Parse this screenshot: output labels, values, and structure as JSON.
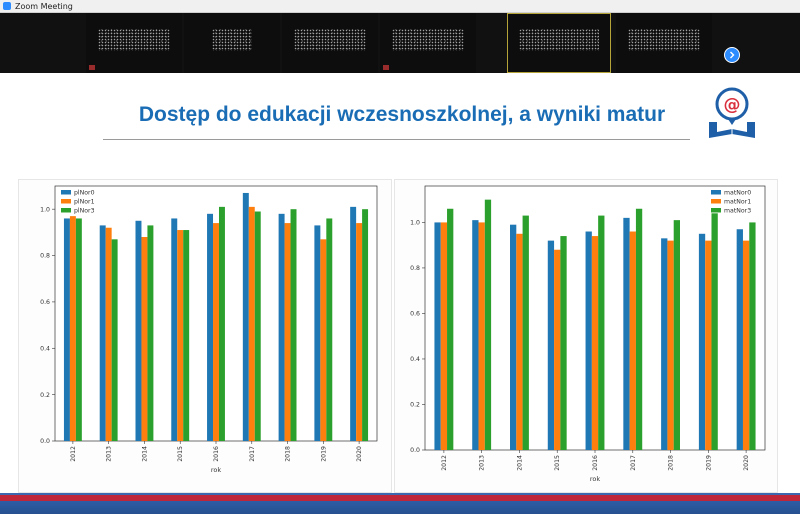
{
  "window": {
    "title": "Zoom Meeting"
  },
  "slide": {
    "title": "Dostęp do edukacji wczesnoszkolnej, a wyniki matur"
  },
  "colors": {
    "series": [
      "#1f77b4",
      "#ff7f0e",
      "#2ca02c"
    ],
    "title": "#1a6db5",
    "accent": "#2d8cff"
  },
  "chart_data": [
    {
      "type": "bar",
      "categories": [
        "2012",
        "2013",
        "2014",
        "2015",
        "2016",
        "2017",
        "2018",
        "2019",
        "2020"
      ],
      "xlabel": "rok",
      "ylabel": "",
      "ylim": [
        0,
        1.1
      ],
      "yticks": [
        "0.0",
        "0.2",
        "0.4",
        "0.6",
        "0.8",
        "1.0"
      ],
      "legend": "top-left",
      "series": [
        {
          "name": "plNor0",
          "values": [
            0.96,
            0.93,
            0.95,
            0.96,
            0.98,
            1.07,
            0.98,
            0.93,
            1.01
          ]
        },
        {
          "name": "plNor1",
          "values": [
            0.97,
            0.92,
            0.88,
            0.91,
            0.94,
            1.01,
            0.94,
            0.87,
            0.94
          ]
        },
        {
          "name": "plNor3",
          "values": [
            0.96,
            0.87,
            0.93,
            0.91,
            1.01,
            0.99,
            1.0,
            0.96,
            1.0
          ]
        }
      ]
    },
    {
      "type": "bar",
      "categories": [
        "2012",
        "2013",
        "2014",
        "2015",
        "2016",
        "2017",
        "2018",
        "2019",
        "2020"
      ],
      "xlabel": "rok",
      "ylabel": "",
      "ylim": [
        0,
        1.16
      ],
      "yticks": [
        "0.0",
        "0.2",
        "0.4",
        "0.6",
        "0.8",
        "1.0"
      ],
      "legend": "top-right",
      "series": [
        {
          "name": "matNor0",
          "values": [
            1.0,
            1.01,
            0.99,
            0.92,
            0.96,
            1.02,
            0.93,
            0.95,
            0.97
          ]
        },
        {
          "name": "matNor1",
          "values": [
            1.0,
            1.0,
            0.95,
            0.88,
            0.94,
            0.96,
            0.92,
            0.92,
            0.92
          ]
        },
        {
          "name": "matNor3",
          "values": [
            1.06,
            1.1,
            1.03,
            0.94,
            1.03,
            1.06,
            1.01,
            1.04,
            1.0
          ]
        }
      ]
    }
  ]
}
